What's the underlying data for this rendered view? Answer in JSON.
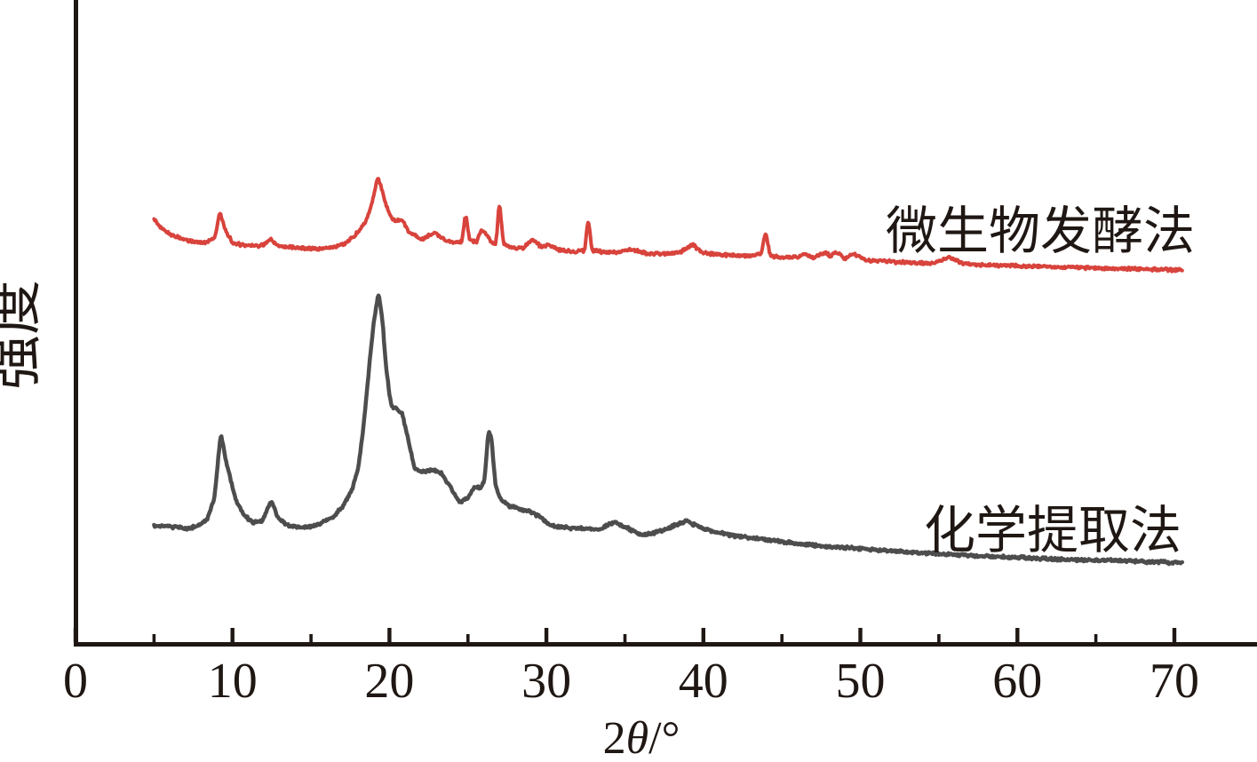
{
  "page": {
    "background": "#ffffff"
  },
  "colors": {
    "axis": "#1f1713",
    "text": "#1f1713",
    "background": "#ffffff"
  },
  "chart_data": {
    "type": "line",
    "title": "",
    "xlabel": "2θ/°",
    "xlabel_parts": [
      "2",
      "θ",
      "/°"
    ],
    "ylabel": "强度",
    "grid": false,
    "legend_position": "inline-right-of-plot, text above each trace",
    "x_axis": {
      "min": 0,
      "max": 75.3,
      "unit": "degrees 2theta",
      "major_ticks": [
        0,
        10,
        20,
        30,
        40,
        50,
        60,
        70
      ],
      "tick_labels": [
        "0",
        "10",
        "20",
        "30",
        "40",
        "50",
        "60",
        "70"
      ],
      "minor_ticks": [
        5,
        15,
        25,
        35,
        45,
        55,
        65
      ]
    },
    "y_axis": {
      "label": "强度",
      "ticks": [],
      "note": "intensity in arbitrary units (0-100 normalized), no tick marks shown"
    },
    "series": [
      {
        "key": "fermentation",
        "name": "微生物发酵法",
        "color": "#d8433c",
        "label_color": "#1f1713",
        "noise_seed": 42,
        "points": [
          [
            5.0,
            80.0
          ],
          [
            5.4,
            78.3
          ],
          [
            6.0,
            77.0
          ],
          [
            6.8,
            76.2
          ],
          [
            7.6,
            75.6
          ],
          [
            8.3,
            75.4
          ],
          [
            8.9,
            76.5
          ],
          [
            9.2,
            81.3
          ],
          [
            9.55,
            77.8
          ],
          [
            10.0,
            75.5
          ],
          [
            10.6,
            75.0
          ],
          [
            11.4,
            74.8
          ],
          [
            12.0,
            75.0
          ],
          [
            12.4,
            76.3
          ],
          [
            12.9,
            74.9
          ],
          [
            13.6,
            74.6
          ],
          [
            14.5,
            74.4
          ],
          [
            15.5,
            74.3
          ],
          [
            16.4,
            74.6
          ],
          [
            17.2,
            75.3
          ],
          [
            18.0,
            77.5
          ],
          [
            18.45,
            79.2
          ],
          [
            18.8,
            82.0
          ],
          [
            19.05,
            85.0
          ],
          [
            19.25,
            88.0
          ],
          [
            19.5,
            85.5
          ],
          [
            19.75,
            82.8
          ],
          [
            20.1,
            80.2
          ],
          [
            20.45,
            79.6
          ],
          [
            20.8,
            79.9
          ],
          [
            21.2,
            77.6
          ],
          [
            22.0,
            76.0
          ],
          [
            22.9,
            77.4
          ],
          [
            23.5,
            75.9
          ],
          [
            24.2,
            75.4
          ],
          [
            24.6,
            75.6
          ],
          [
            24.85,
            81.0
          ],
          [
            25.1,
            75.9
          ],
          [
            25.55,
            75.6
          ],
          [
            25.85,
            77.9
          ],
          [
            26.2,
            76.9
          ],
          [
            26.6,
            75.2
          ],
          [
            26.8,
            75.5
          ],
          [
            27.0,
            83.5
          ],
          [
            27.25,
            75.2
          ],
          [
            27.9,
            74.5
          ],
          [
            28.5,
            74.4
          ],
          [
            29.1,
            76.2
          ],
          [
            29.7,
            74.6
          ],
          [
            30.1,
            75.1
          ],
          [
            30.8,
            74.1
          ],
          [
            31.8,
            73.8
          ],
          [
            32.45,
            74.0
          ],
          [
            32.65,
            80.4
          ],
          [
            32.9,
            74.0
          ],
          [
            33.6,
            73.7
          ],
          [
            34.4,
            73.6
          ],
          [
            35.5,
            74.2
          ],
          [
            36.4,
            73.4
          ],
          [
            37.6,
            73.3
          ],
          [
            38.6,
            73.8
          ],
          [
            39.3,
            75.2
          ],
          [
            39.9,
            73.6
          ],
          [
            41.0,
            73.2
          ],
          [
            42.3,
            73.0
          ],
          [
            43.2,
            73.1
          ],
          [
            43.7,
            73.3
          ],
          [
            43.95,
            77.7
          ],
          [
            44.25,
            73.0
          ],
          [
            45.2,
            72.6
          ],
          [
            46.0,
            72.8
          ],
          [
            46.45,
            73.4
          ],
          [
            47.0,
            72.6
          ],
          [
            47.7,
            73.6
          ],
          [
            48.1,
            73.0
          ],
          [
            48.45,
            73.7
          ],
          [
            49.0,
            72.5
          ],
          [
            49.6,
            73.3
          ],
          [
            50.3,
            72.2
          ],
          [
            51.5,
            72.0
          ],
          [
            53.0,
            71.7
          ],
          [
            54.5,
            71.6
          ],
          [
            55.7,
            72.6
          ],
          [
            56.6,
            71.5
          ],
          [
            58.0,
            71.3
          ],
          [
            60.0,
            71.1
          ],
          [
            62.0,
            70.9
          ],
          [
            64.0,
            70.8
          ],
          [
            66.0,
            70.6
          ],
          [
            68.0,
            70.5
          ],
          [
            70.5,
            70.3
          ]
        ]
      },
      {
        "key": "chemical",
        "name": "化学提取法",
        "color": "#4d4d4d",
        "label_color": "#1f1713",
        "noise_seed": 1337,
        "points": [
          [
            5.0,
            22.3
          ],
          [
            5.8,
            22.2
          ],
          [
            6.5,
            22.0
          ],
          [
            7.2,
            21.8
          ],
          [
            7.8,
            22.3
          ],
          [
            8.4,
            23.6
          ],
          [
            8.85,
            27.5
          ],
          [
            9.25,
            39.8
          ],
          [
            9.6,
            34.3
          ],
          [
            10.2,
            27.3
          ],
          [
            10.75,
            24.3
          ],
          [
            11.3,
            22.9
          ],
          [
            11.9,
            23.2
          ],
          [
            12.45,
            27.0
          ],
          [
            12.95,
            23.6
          ],
          [
            13.6,
            22.3
          ],
          [
            14.3,
            22.0
          ],
          [
            15.0,
            22.2
          ],
          [
            15.8,
            23.0
          ],
          [
            16.5,
            24.2
          ],
          [
            17.1,
            26.3
          ],
          [
            17.6,
            29.0
          ],
          [
            18.0,
            33.0
          ],
          [
            18.35,
            41.0
          ],
          [
            18.7,
            52.0
          ],
          [
            19.0,
            60.5
          ],
          [
            19.3,
            66.0
          ],
          [
            19.55,
            61.0
          ],
          [
            19.8,
            51.5
          ],
          [
            20.1,
            45.0
          ],
          [
            20.45,
            44.2
          ],
          [
            20.8,
            43.4
          ],
          [
            21.2,
            38.5
          ],
          [
            21.6,
            33.2
          ],
          [
            22.1,
            32.4
          ],
          [
            22.8,
            32.8
          ],
          [
            23.3,
            32.3
          ],
          [
            23.9,
            29.6
          ],
          [
            24.45,
            26.6
          ],
          [
            25.0,
            27.6
          ],
          [
            25.45,
            29.8
          ],
          [
            25.8,
            29.4
          ],
          [
            26.05,
            30.6
          ],
          [
            26.3,
            40.2
          ],
          [
            26.5,
            38.8
          ],
          [
            26.75,
            30.0
          ],
          [
            27.1,
            27.2
          ],
          [
            27.6,
            26.1
          ],
          [
            28.2,
            25.6
          ],
          [
            28.9,
            25.0
          ],
          [
            29.6,
            23.9
          ],
          [
            30.3,
            22.3
          ],
          [
            31.2,
            22.0
          ],
          [
            32.2,
            21.8
          ],
          [
            33.2,
            21.6
          ],
          [
            34.4,
            23.0
          ],
          [
            35.3,
            21.7
          ],
          [
            36.1,
            20.6
          ],
          [
            37.1,
            21.1
          ],
          [
            38.1,
            22.3
          ],
          [
            38.9,
            23.2
          ],
          [
            39.7,
            22.1
          ],
          [
            40.6,
            21.2
          ],
          [
            42.0,
            20.4
          ],
          [
            44.0,
            19.7
          ],
          [
            46.0,
            19.0
          ],
          [
            48.0,
            18.4
          ],
          [
            50.0,
            18.0
          ],
          [
            52.0,
            17.6
          ],
          [
            54.0,
            17.2
          ],
          [
            56.0,
            16.9
          ],
          [
            58.0,
            16.6
          ],
          [
            60.0,
            16.4
          ],
          [
            62.0,
            16.1
          ],
          [
            64.0,
            15.9
          ],
          [
            66.0,
            15.8
          ],
          [
            68.0,
            15.6
          ],
          [
            70.5,
            15.4
          ]
        ]
      }
    ]
  }
}
